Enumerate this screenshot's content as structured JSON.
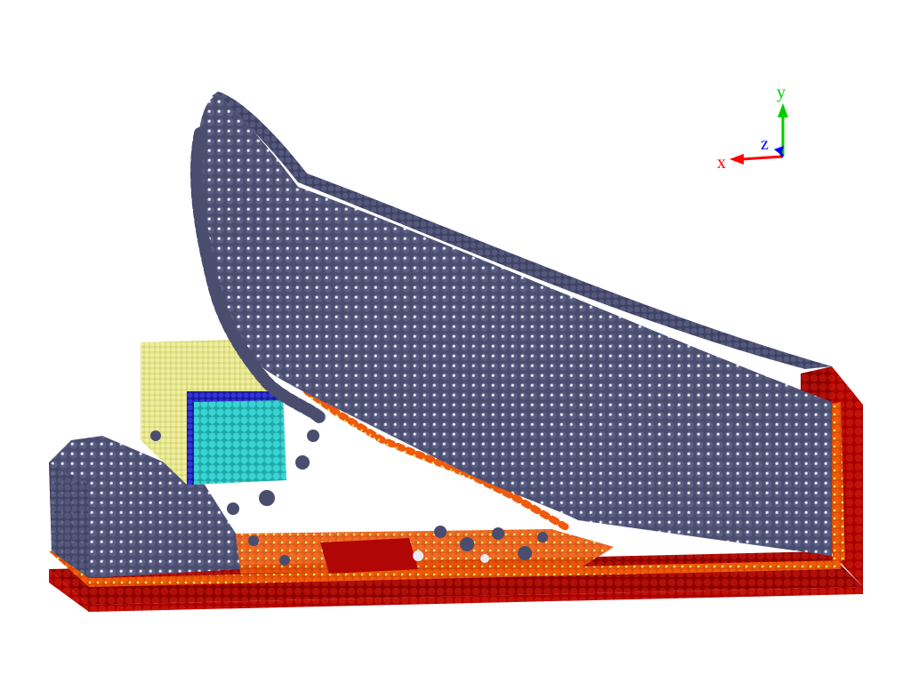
{
  "scene": {
    "colors": {
      "background": "#ffffff",
      "substrate_dark_red": "#a80000",
      "substrate_red": "#c01208",
      "interface_orange": "#f05a0a",
      "interface_yellow": "#e8e060",
      "film_atoms": "#4a4d6e",
      "film_highlight": "#e8eaf4",
      "cube_yellow": "#e6e68c",
      "cube_cyan": "#2ec8c8",
      "cube_blue_edge": "#2828c8"
    }
  },
  "axes": {
    "x_label": "x",
    "y_label": "y",
    "z_label": "z",
    "x_color": "#ff0000",
    "y_color": "#00cc00",
    "z_color": "#0000ff"
  }
}
